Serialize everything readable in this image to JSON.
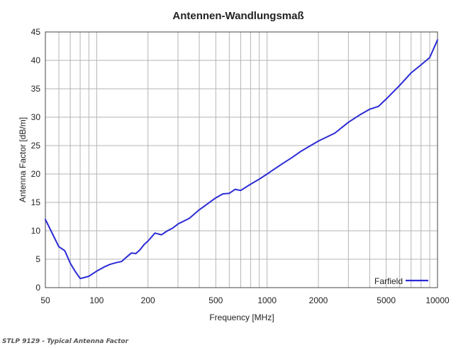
{
  "chart_data": {
    "type": "line",
    "title": "Antennen-Wandlungsmaß",
    "xlabel": "Frequency [MHz]",
    "ylabel": "Antenna Factor [dB/m]",
    "x_scale": "log",
    "xlim": [
      50,
      10000
    ],
    "ylim": [
      0,
      45
    ],
    "grid": true,
    "legend_position": "bottom-right",
    "x_ticks": [
      "50",
      "100",
      "200",
      "500",
      "1000",
      "2000",
      "5000",
      "10000"
    ],
    "y_ticks": [
      "0",
      "5",
      "10",
      "15",
      "20",
      "25",
      "30",
      "35",
      "40",
      "45"
    ],
    "series": [
      {
        "name": "Farfield",
        "color": "#2b2bd6",
        "x": [
          50,
          55,
          60,
          65,
          70,
          75,
          80,
          85,
          90,
          100,
          110,
          120,
          130,
          140,
          150,
          160,
          170,
          180,
          190,
          200,
          220,
          240,
          260,
          280,
          300,
          350,
          400,
          450,
          500,
          550,
          600,
          650,
          700,
          800,
          900,
          1000,
          1200,
          1400,
          1600,
          1800,
          2000,
          2500,
          3000,
          3500,
          4000,
          4500,
          5000,
          6000,
          7000,
          8000,
          9000,
          10000
        ],
        "y": [
          12,
          9.5,
          7.2,
          6.5,
          4.3,
          2.8,
          1.6,
          1.8,
          2.0,
          2.9,
          3.6,
          4.1,
          4.4,
          4.6,
          5.4,
          6.1,
          6.0,
          6.7,
          7.6,
          8.2,
          9.6,
          9.3,
          10.0,
          10.5,
          11.2,
          12.2,
          13.7,
          14.8,
          15.8,
          16.5,
          16.6,
          17.3,
          17.1,
          18.2,
          19.1,
          20.0,
          21.6,
          22.9,
          24.1,
          25.0,
          25.8,
          27.2,
          29.1,
          30.4,
          31.4,
          31.9,
          33.2,
          35.6,
          37.8,
          39.2,
          40.5,
          43.6
        ]
      }
    ]
  },
  "caption": "STLP 9129 - Typical Antenna Factor"
}
